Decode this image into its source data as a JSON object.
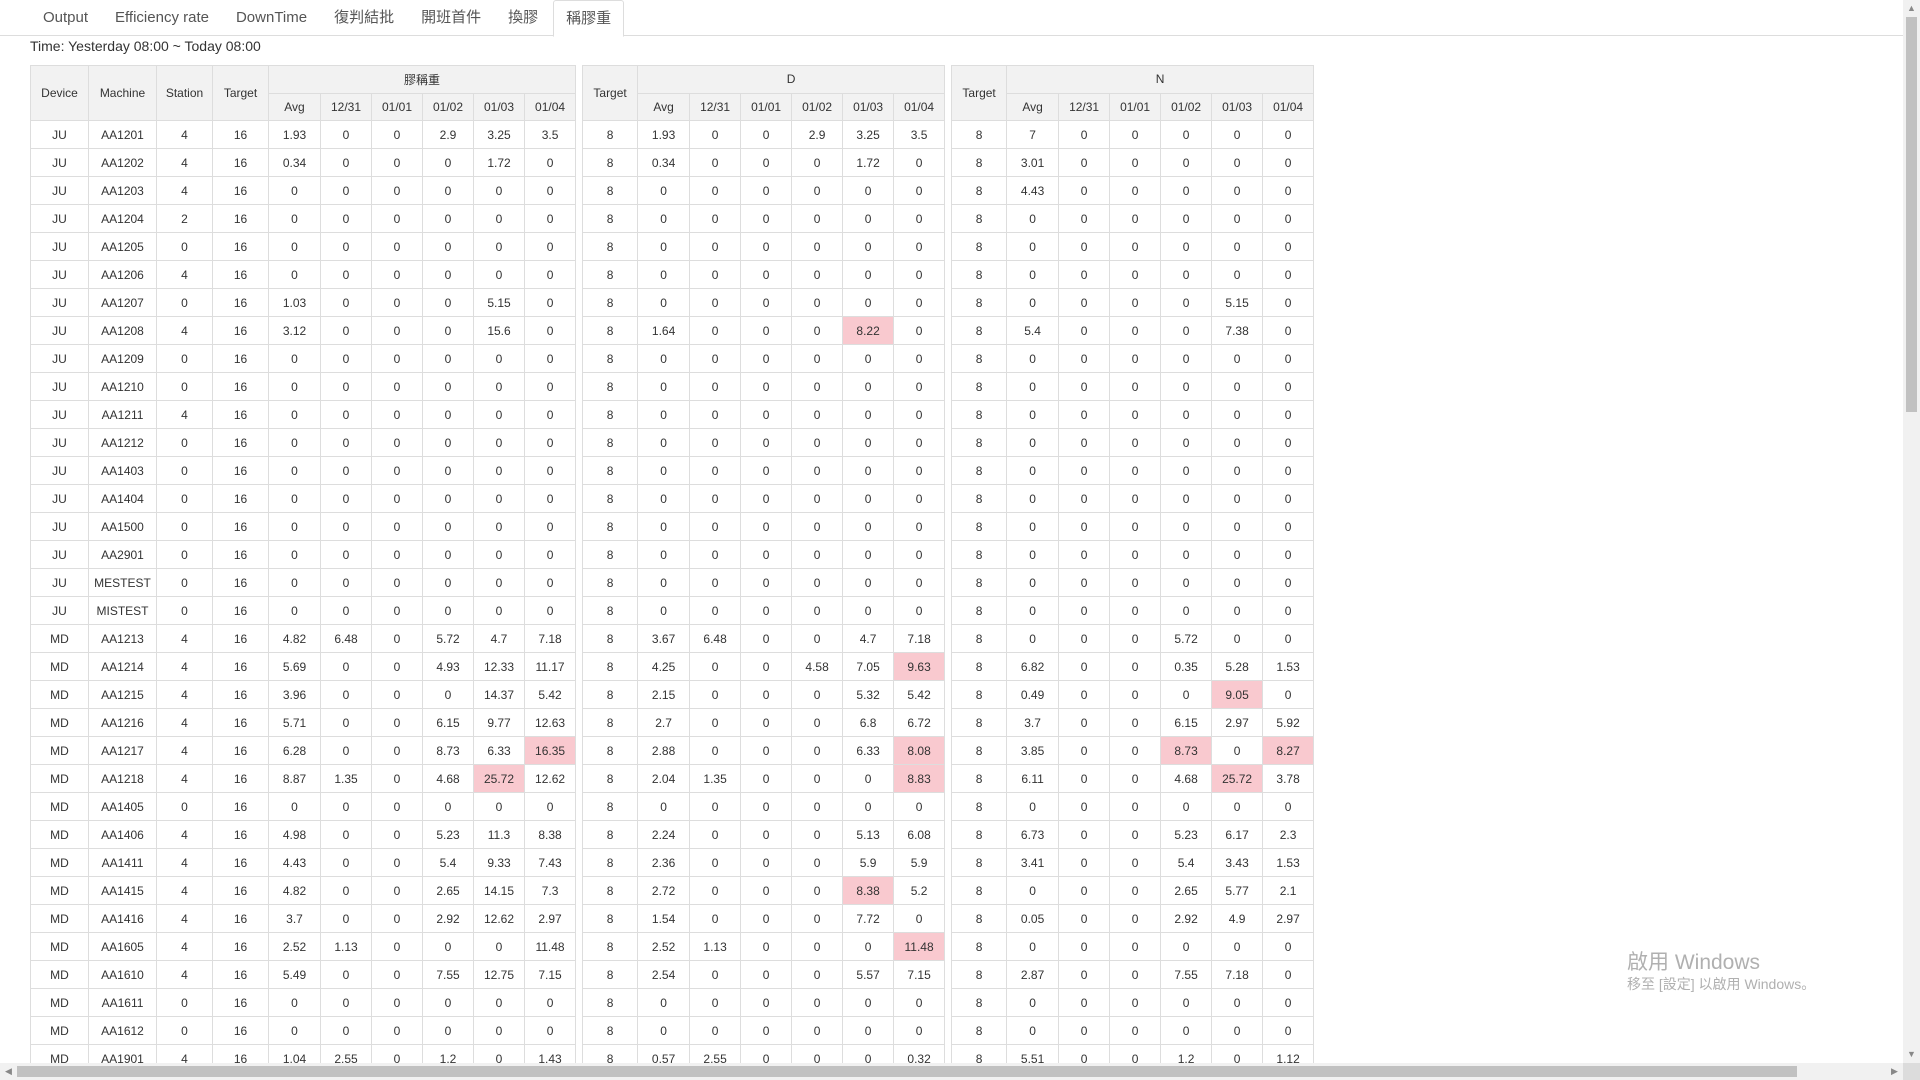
{
  "tabs": [
    "Output",
    "Efficiency rate",
    "DownTime",
    "復判結批",
    "開班首件",
    "換膠",
    "稱膠重"
  ],
  "active_tab": 6,
  "time_label": "Time:  Yesterday 08:00 ~ Today 08:00",
  "groups": [
    {
      "title": "膠稱重",
      "target_label": "Target"
    },
    {
      "title": "D",
      "target_label": "Target"
    },
    {
      "title": "N",
      "target_label": "Target"
    }
  ],
  "left_headers": [
    "Device",
    "Machine",
    "Station"
  ],
  "sub_headers": [
    "Avg",
    "12/31",
    "01/01",
    "01/02",
    "01/03",
    "01/04"
  ],
  "highlight_color": "#f9c9cf",
  "rows": [
    {
      "device": "JU",
      "machine": "AA1201",
      "station": "4",
      "t1": "16",
      "g1": [
        "1.93",
        "0",
        "0",
        "2.9",
        "3.25",
        "3.5"
      ],
      "t2": "8",
      "g2": [
        "1.93",
        "0",
        "0",
        "2.9",
        "3.25",
        "3.5"
      ],
      "t3": "8",
      "g3": [
        "7",
        "0",
        "0",
        "0",
        "0",
        "0"
      ],
      "hl1": [],
      "hl2": [],
      "hl3": []
    },
    {
      "device": "JU",
      "machine": "AA1202",
      "station": "4",
      "t1": "16",
      "g1": [
        "0.34",
        "0",
        "0",
        "0",
        "1.72",
        "0"
      ],
      "t2": "8",
      "g2": [
        "0.34",
        "0",
        "0",
        "0",
        "1.72",
        "0"
      ],
      "t3": "8",
      "g3": [
        "3.01",
        "0",
        "0",
        "0",
        "0",
        "0"
      ],
      "hl1": [],
      "hl2": [],
      "hl3": []
    },
    {
      "device": "JU",
      "machine": "AA1203",
      "station": "4",
      "t1": "16",
      "g1": [
        "0",
        "0",
        "0",
        "0",
        "0",
        "0"
      ],
      "t2": "8",
      "g2": [
        "0",
        "0",
        "0",
        "0",
        "0",
        "0"
      ],
      "t3": "8",
      "g3": [
        "4.43",
        "0",
        "0",
        "0",
        "0",
        "0"
      ],
      "hl1": [],
      "hl2": [],
      "hl3": []
    },
    {
      "device": "JU",
      "machine": "AA1204",
      "station": "2",
      "t1": "16",
      "g1": [
        "0",
        "0",
        "0",
        "0",
        "0",
        "0"
      ],
      "t2": "8",
      "g2": [
        "0",
        "0",
        "0",
        "0",
        "0",
        "0"
      ],
      "t3": "8",
      "g3": [
        "0",
        "0",
        "0",
        "0",
        "0",
        "0"
      ],
      "hl1": [],
      "hl2": [],
      "hl3": []
    },
    {
      "device": "JU",
      "machine": "AA1205",
      "station": "0",
      "t1": "16",
      "g1": [
        "0",
        "0",
        "0",
        "0",
        "0",
        "0"
      ],
      "t2": "8",
      "g2": [
        "0",
        "0",
        "0",
        "0",
        "0",
        "0"
      ],
      "t3": "8",
      "g3": [
        "0",
        "0",
        "0",
        "0",
        "0",
        "0"
      ],
      "hl1": [],
      "hl2": [],
      "hl3": []
    },
    {
      "device": "JU",
      "machine": "AA1206",
      "station": "4",
      "t1": "16",
      "g1": [
        "0",
        "0",
        "0",
        "0",
        "0",
        "0"
      ],
      "t2": "8",
      "g2": [
        "0",
        "0",
        "0",
        "0",
        "0",
        "0"
      ],
      "t3": "8",
      "g3": [
        "0",
        "0",
        "0",
        "0",
        "0",
        "0"
      ],
      "hl1": [],
      "hl2": [],
      "hl3": []
    },
    {
      "device": "JU",
      "machine": "AA1207",
      "station": "0",
      "t1": "16",
      "g1": [
        "1.03",
        "0",
        "0",
        "0",
        "5.15",
        "0"
      ],
      "t2": "8",
      "g2": [
        "0",
        "0",
        "0",
        "0",
        "0",
        "0"
      ],
      "t3": "8",
      "g3": [
        "0",
        "0",
        "0",
        "0",
        "5.15",
        "0"
      ],
      "hl1": [],
      "hl2": [],
      "hl3": []
    },
    {
      "device": "JU",
      "machine": "AA1208",
      "station": "4",
      "t1": "16",
      "g1": [
        "3.12",
        "0",
        "0",
        "0",
        "15.6",
        "0"
      ],
      "t2": "8",
      "g2": [
        "1.64",
        "0",
        "0",
        "0",
        "8.22",
        "0"
      ],
      "t3": "8",
      "g3": [
        "5.4",
        "0",
        "0",
        "0",
        "7.38",
        "0"
      ],
      "hl1": [],
      "hl2": [
        4
      ],
      "hl3": []
    },
    {
      "device": "JU",
      "machine": "AA1209",
      "station": "0",
      "t1": "16",
      "g1": [
        "0",
        "0",
        "0",
        "0",
        "0",
        "0"
      ],
      "t2": "8",
      "g2": [
        "0",
        "0",
        "0",
        "0",
        "0",
        "0"
      ],
      "t3": "8",
      "g3": [
        "0",
        "0",
        "0",
        "0",
        "0",
        "0"
      ],
      "hl1": [],
      "hl2": [],
      "hl3": []
    },
    {
      "device": "JU",
      "machine": "AA1210",
      "station": "0",
      "t1": "16",
      "g1": [
        "0",
        "0",
        "0",
        "0",
        "0",
        "0"
      ],
      "t2": "8",
      "g2": [
        "0",
        "0",
        "0",
        "0",
        "0",
        "0"
      ],
      "t3": "8",
      "g3": [
        "0",
        "0",
        "0",
        "0",
        "0",
        "0"
      ],
      "hl1": [],
      "hl2": [],
      "hl3": []
    },
    {
      "device": "JU",
      "machine": "AA1211",
      "station": "4",
      "t1": "16",
      "g1": [
        "0",
        "0",
        "0",
        "0",
        "0",
        "0"
      ],
      "t2": "8",
      "g2": [
        "0",
        "0",
        "0",
        "0",
        "0",
        "0"
      ],
      "t3": "8",
      "g3": [
        "0",
        "0",
        "0",
        "0",
        "0",
        "0"
      ],
      "hl1": [],
      "hl2": [],
      "hl3": []
    },
    {
      "device": "JU",
      "machine": "AA1212",
      "station": "0",
      "t1": "16",
      "g1": [
        "0",
        "0",
        "0",
        "0",
        "0",
        "0"
      ],
      "t2": "8",
      "g2": [
        "0",
        "0",
        "0",
        "0",
        "0",
        "0"
      ],
      "t3": "8",
      "g3": [
        "0",
        "0",
        "0",
        "0",
        "0",
        "0"
      ],
      "hl1": [],
      "hl2": [],
      "hl3": []
    },
    {
      "device": "JU",
      "machine": "AA1403",
      "station": "0",
      "t1": "16",
      "g1": [
        "0",
        "0",
        "0",
        "0",
        "0",
        "0"
      ],
      "t2": "8",
      "g2": [
        "0",
        "0",
        "0",
        "0",
        "0",
        "0"
      ],
      "t3": "8",
      "g3": [
        "0",
        "0",
        "0",
        "0",
        "0",
        "0"
      ],
      "hl1": [],
      "hl2": [],
      "hl3": []
    },
    {
      "device": "JU",
      "machine": "AA1404",
      "station": "0",
      "t1": "16",
      "g1": [
        "0",
        "0",
        "0",
        "0",
        "0",
        "0"
      ],
      "t2": "8",
      "g2": [
        "0",
        "0",
        "0",
        "0",
        "0",
        "0"
      ],
      "t3": "8",
      "g3": [
        "0",
        "0",
        "0",
        "0",
        "0",
        "0"
      ],
      "hl1": [],
      "hl2": [],
      "hl3": []
    },
    {
      "device": "JU",
      "machine": "AA1500",
      "station": "0",
      "t1": "16",
      "g1": [
        "0",
        "0",
        "0",
        "0",
        "0",
        "0"
      ],
      "t2": "8",
      "g2": [
        "0",
        "0",
        "0",
        "0",
        "0",
        "0"
      ],
      "t3": "8",
      "g3": [
        "0",
        "0",
        "0",
        "0",
        "0",
        "0"
      ],
      "hl1": [],
      "hl2": [],
      "hl3": []
    },
    {
      "device": "JU",
      "machine": "AA2901",
      "station": "0",
      "t1": "16",
      "g1": [
        "0",
        "0",
        "0",
        "0",
        "0",
        "0"
      ],
      "t2": "8",
      "g2": [
        "0",
        "0",
        "0",
        "0",
        "0",
        "0"
      ],
      "t3": "8",
      "g3": [
        "0",
        "0",
        "0",
        "0",
        "0",
        "0"
      ],
      "hl1": [],
      "hl2": [],
      "hl3": []
    },
    {
      "device": "JU",
      "machine": "MESTEST",
      "station": "0",
      "t1": "16",
      "g1": [
        "0",
        "0",
        "0",
        "0",
        "0",
        "0"
      ],
      "t2": "8",
      "g2": [
        "0",
        "0",
        "0",
        "0",
        "0",
        "0"
      ],
      "t3": "8",
      "g3": [
        "0",
        "0",
        "0",
        "0",
        "0",
        "0"
      ],
      "hl1": [],
      "hl2": [],
      "hl3": []
    },
    {
      "device": "JU",
      "machine": "MISTEST",
      "station": "0",
      "t1": "16",
      "g1": [
        "0",
        "0",
        "0",
        "0",
        "0",
        "0"
      ],
      "t2": "8",
      "g2": [
        "0",
        "0",
        "0",
        "0",
        "0",
        "0"
      ],
      "t3": "8",
      "g3": [
        "0",
        "0",
        "0",
        "0",
        "0",
        "0"
      ],
      "hl1": [],
      "hl2": [],
      "hl3": []
    },
    {
      "device": "MD",
      "machine": "AA1213",
      "station": "4",
      "t1": "16",
      "g1": [
        "4.82",
        "6.48",
        "0",
        "5.72",
        "4.7",
        "7.18"
      ],
      "t2": "8",
      "g2": [
        "3.67",
        "6.48",
        "0",
        "0",
        "4.7",
        "7.18"
      ],
      "t3": "8",
      "g3": [
        "0",
        "0",
        "0",
        "5.72",
        "0",
        "0"
      ],
      "hl1": [],
      "hl2": [],
      "hl3": []
    },
    {
      "device": "MD",
      "machine": "AA1214",
      "station": "4",
      "t1": "16",
      "g1": [
        "5.69",
        "0",
        "0",
        "4.93",
        "12.33",
        "11.17"
      ],
      "t2": "8",
      "g2": [
        "4.25",
        "0",
        "0",
        "4.58",
        "7.05",
        "9.63"
      ],
      "t3": "8",
      "g3": [
        "6.82",
        "0",
        "0",
        "0.35",
        "5.28",
        "1.53"
      ],
      "hl1": [],
      "hl2": [
        5
      ],
      "hl3": []
    },
    {
      "device": "MD",
      "machine": "AA1215",
      "station": "4",
      "t1": "16",
      "g1": [
        "3.96",
        "0",
        "0",
        "0",
        "14.37",
        "5.42"
      ],
      "t2": "8",
      "g2": [
        "2.15",
        "0",
        "0",
        "0",
        "5.32",
        "5.42"
      ],
      "t3": "8",
      "g3": [
        "0.49",
        "0",
        "0",
        "0",
        "9.05",
        "0"
      ],
      "hl1": [],
      "hl2": [],
      "hl3": [
        4
      ]
    },
    {
      "device": "MD",
      "machine": "AA1216",
      "station": "4",
      "t1": "16",
      "g1": [
        "5.71",
        "0",
        "0",
        "6.15",
        "9.77",
        "12.63"
      ],
      "t2": "8",
      "g2": [
        "2.7",
        "0",
        "0",
        "0",
        "6.8",
        "6.72"
      ],
      "t3": "8",
      "g3": [
        "3.7",
        "0",
        "0",
        "6.15",
        "2.97",
        "5.92"
      ],
      "hl1": [],
      "hl2": [],
      "hl3": []
    },
    {
      "device": "MD",
      "machine": "AA1217",
      "station": "4",
      "t1": "16",
      "g1": [
        "6.28",
        "0",
        "0",
        "8.73",
        "6.33",
        "16.35"
      ],
      "t2": "8",
      "g2": [
        "2.88",
        "0",
        "0",
        "0",
        "6.33",
        "8.08"
      ],
      "t3": "8",
      "g3": [
        "3.85",
        "0",
        "0",
        "8.73",
        "0",
        "8.27"
      ],
      "hl1": [
        5
      ],
      "hl2": [
        5
      ],
      "hl3": [
        3,
        5
      ]
    },
    {
      "device": "MD",
      "machine": "AA1218",
      "station": "4",
      "t1": "16",
      "g1": [
        "8.87",
        "1.35",
        "0",
        "4.68",
        "25.72",
        "12.62"
      ],
      "t2": "8",
      "g2": [
        "2.04",
        "1.35",
        "0",
        "0",
        "0",
        "8.83"
      ],
      "t3": "8",
      "g3": [
        "6.11",
        "0",
        "0",
        "4.68",
        "25.72",
        "3.78"
      ],
      "hl1": [
        4
      ],
      "hl2": [
        5
      ],
      "hl3": [
        4
      ]
    },
    {
      "device": "MD",
      "machine": "AA1405",
      "station": "0",
      "t1": "16",
      "g1": [
        "0",
        "0",
        "0",
        "0",
        "0",
        "0"
      ],
      "t2": "8",
      "g2": [
        "0",
        "0",
        "0",
        "0",
        "0",
        "0"
      ],
      "t3": "8",
      "g3": [
        "0",
        "0",
        "0",
        "0",
        "0",
        "0"
      ],
      "hl1": [],
      "hl2": [],
      "hl3": []
    },
    {
      "device": "MD",
      "machine": "AA1406",
      "station": "4",
      "t1": "16",
      "g1": [
        "4.98",
        "0",
        "0",
        "5.23",
        "11.3",
        "8.38"
      ],
      "t2": "8",
      "g2": [
        "2.24",
        "0",
        "0",
        "0",
        "5.13",
        "6.08"
      ],
      "t3": "8",
      "g3": [
        "6.73",
        "0",
        "0",
        "5.23",
        "6.17",
        "2.3"
      ],
      "hl1": [],
      "hl2": [],
      "hl3": []
    },
    {
      "device": "MD",
      "machine": "AA1411",
      "station": "4",
      "t1": "16",
      "g1": [
        "4.43",
        "0",
        "0",
        "5.4",
        "9.33",
        "7.43"
      ],
      "t2": "8",
      "g2": [
        "2.36",
        "0",
        "0",
        "0",
        "5.9",
        "5.9"
      ],
      "t3": "8",
      "g3": [
        "3.41",
        "0",
        "0",
        "5.4",
        "3.43",
        "1.53"
      ],
      "hl1": [],
      "hl2": [],
      "hl3": []
    },
    {
      "device": "MD",
      "machine": "AA1415",
      "station": "4",
      "t1": "16",
      "g1": [
        "4.82",
        "0",
        "0",
        "2.65",
        "14.15",
        "7.3"
      ],
      "t2": "8",
      "g2": [
        "2.72",
        "0",
        "0",
        "0",
        "8.38",
        "5.2"
      ],
      "t3": "8",
      "g3": [
        "0",
        "0",
        "0",
        "2.65",
        "5.77",
        "2.1"
      ],
      "hl1": [],
      "hl2": [
        4
      ],
      "hl3": []
    },
    {
      "device": "MD",
      "machine": "AA1416",
      "station": "4",
      "t1": "16",
      "g1": [
        "3.7",
        "0",
        "0",
        "2.92",
        "12.62",
        "2.97"
      ],
      "t2": "8",
      "g2": [
        "1.54",
        "0",
        "0",
        "0",
        "7.72",
        "0"
      ],
      "t3": "8",
      "g3": [
        "0.05",
        "0",
        "0",
        "2.92",
        "4.9",
        "2.97"
      ],
      "hl1": [],
      "hl2": [],
      "hl3": []
    },
    {
      "device": "MD",
      "machine": "AA1605",
      "station": "4",
      "t1": "16",
      "g1": [
        "2.52",
        "1.13",
        "0",
        "0",
        "0",
        "11.48"
      ],
      "t2": "8",
      "g2": [
        "2.52",
        "1.13",
        "0",
        "0",
        "0",
        "11.48"
      ],
      "t3": "8",
      "g3": [
        "0",
        "0",
        "0",
        "0",
        "0",
        "0"
      ],
      "hl1": [],
      "hl2": [
        5
      ],
      "hl3": []
    },
    {
      "device": "MD",
      "machine": "AA1610",
      "station": "4",
      "t1": "16",
      "g1": [
        "5.49",
        "0",
        "0",
        "7.55",
        "12.75",
        "7.15"
      ],
      "t2": "8",
      "g2": [
        "2.54",
        "0",
        "0",
        "0",
        "5.57",
        "7.15"
      ],
      "t3": "8",
      "g3": [
        "2.87",
        "0",
        "0",
        "7.55",
        "7.18",
        "0"
      ],
      "hl1": [],
      "hl2": [],
      "hl3": []
    },
    {
      "device": "MD",
      "machine": "AA1611",
      "station": "0",
      "t1": "16",
      "g1": [
        "0",
        "0",
        "0",
        "0",
        "0",
        "0"
      ],
      "t2": "8",
      "g2": [
        "0",
        "0",
        "0",
        "0",
        "0",
        "0"
      ],
      "t3": "8",
      "g3": [
        "0",
        "0",
        "0",
        "0",
        "0",
        "0"
      ],
      "hl1": [],
      "hl2": [],
      "hl3": []
    },
    {
      "device": "MD",
      "machine": "AA1612",
      "station": "0",
      "t1": "16",
      "g1": [
        "0",
        "0",
        "0",
        "0",
        "0",
        "0"
      ],
      "t2": "8",
      "g2": [
        "0",
        "0",
        "0",
        "0",
        "0",
        "0"
      ],
      "t3": "8",
      "g3": [
        "0",
        "0",
        "0",
        "0",
        "0",
        "0"
      ],
      "hl1": [],
      "hl2": [],
      "hl3": []
    },
    {
      "device": "MD",
      "machine": "AA1901",
      "station": "4",
      "t1": "16",
      "g1": [
        "1.04",
        "2.55",
        "0",
        "1.2",
        "0",
        "1.43"
      ],
      "t2": "8",
      "g2": [
        "0.57",
        "2.55",
        "0",
        "0",
        "0",
        "0.32"
      ],
      "t3": "8",
      "g3": [
        "5.51",
        "0",
        "0",
        "1.2",
        "0",
        "1.12"
      ],
      "hl1": [],
      "hl2": [],
      "hl3": []
    }
  ],
  "watermark": {
    "line1": "啟用 Windows",
    "line2": "移至 [設定] 以啟用 Windows。"
  }
}
